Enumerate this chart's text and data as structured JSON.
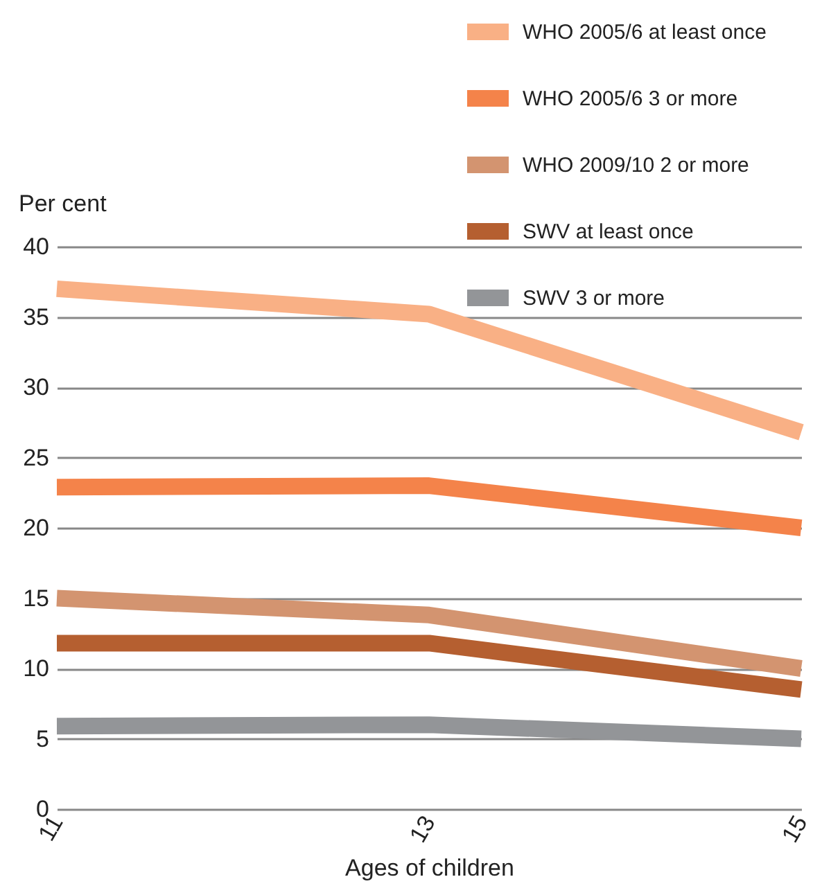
{
  "chart_data": {
    "type": "line",
    "ylabel": "Per cent",
    "xlabel": "Ages of children",
    "x": [
      11,
      13,
      15
    ],
    "xlim": [
      11,
      15
    ],
    "xticks": [
      11,
      13,
      15
    ],
    "ylim": [
      0,
      40
    ],
    "yticks": [
      0,
      5,
      10,
      15,
      20,
      25,
      30,
      35,
      40
    ],
    "grid": "y",
    "legend": "top right",
    "line_style": "solid",
    "series": [
      {
        "name": "WHO 2005/6 at least once",
        "color": "#f9b085",
        "values": [
          37,
          35.2,
          26.8
        ]
      },
      {
        "name": "WHO 2005/6 3 or more",
        "color": "#f4834a",
        "values": [
          22.9,
          23,
          20
        ]
      },
      {
        "name": "WHO 2009/10 2 or more",
        "color": "#d39470",
        "values": [
          15,
          13.8,
          10
        ]
      },
      {
        "name": "SWV at least once",
        "color": "#b55f30",
        "values": [
          11.8,
          11.8,
          8.5
        ]
      },
      {
        "name": "SWV 3 or more",
        "color": "#939598",
        "values": [
          5.9,
          6,
          5
        ]
      }
    ]
  }
}
